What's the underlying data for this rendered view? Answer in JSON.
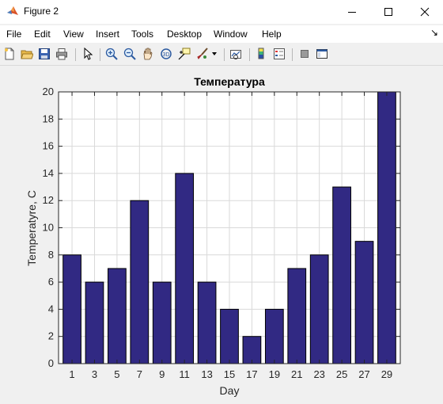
{
  "window": {
    "title": "Figure 2"
  },
  "menu": [
    "File",
    "Edit",
    "View",
    "Insert",
    "Tools",
    "Desktop",
    "Window",
    "Help"
  ],
  "toolbar_icons": [
    "new-figure-icon",
    "open-file-icon",
    "save-icon",
    "print-icon",
    "edit-plot-arrow-icon",
    "zoom-in-icon",
    "zoom-out-icon",
    "pan-icon",
    "rotate-3d-icon",
    "data-cursor-icon",
    "brush-icon",
    "brush-dropdown-icon",
    "link-plot-icon",
    "colorbar-icon",
    "legend-icon",
    "hide-plot-tools-icon",
    "show-plot-tools-icon"
  ],
  "colors": {
    "bar_fill": "#312983",
    "bar_edge": "#000000",
    "grid": "#d9d9d9",
    "axes_bg": "#ffffff"
  },
  "chart_data": {
    "type": "bar",
    "title": "Температура",
    "xlabel": "Day",
    "ylabel": "Temperatyre, C",
    "categories": [
      "1",
      "3",
      "5",
      "7",
      "9",
      "11",
      "13",
      "15",
      "17",
      "19",
      "21",
      "23",
      "25",
      "27",
      "29"
    ],
    "values": [
      8,
      6,
      7,
      12,
      6,
      14,
      6,
      4,
      2,
      4,
      7,
      8,
      13,
      9,
      20
    ],
    "ylim": [
      0,
      20
    ],
    "yticks": [
      "0",
      "2",
      "4",
      "6",
      "8",
      "10",
      "12",
      "14",
      "16",
      "18",
      "20"
    ],
    "grid": true,
    "legend": "none"
  }
}
